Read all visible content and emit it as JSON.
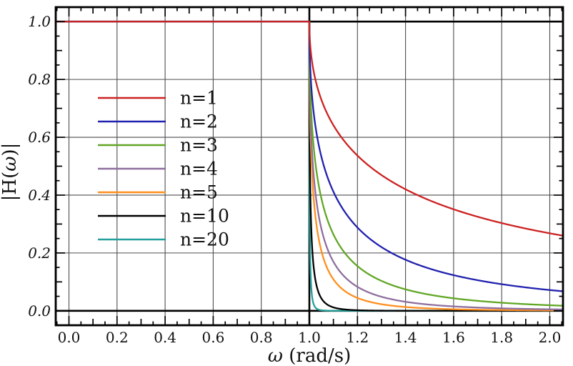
{
  "figure": {
    "background": "#ffffff",
    "text_color": "#111111"
  },
  "chart_data": {
    "type": "line",
    "title": "",
    "xlabel": "ω (rad/s)",
    "ylabel": "|H(ω)|",
    "xlim": [
      -0.055,
      2.055
    ],
    "ylim": [
      -0.05,
      1.05
    ],
    "grid": true,
    "grid_color": "#4d4d4d",
    "axis_color": "#000000",
    "x_major_ticks": [
      0.0,
      0.2,
      0.4,
      0.6,
      0.8,
      1.0,
      1.2,
      1.4,
      1.6,
      1.8,
      2.0
    ],
    "x_tick_labels": [
      "0.0",
      "0.2",
      "0.4",
      "0.6",
      "0.8",
      "1.0",
      "1.2",
      "1.4",
      "1.6",
      "1.8",
      "2.0"
    ],
    "y_major_ticks": [
      0.0,
      0.2,
      0.4,
      0.6,
      0.8,
      1.0
    ],
    "y_tick_labels": [
      "0.0",
      "0.2",
      "0.4",
      "0.6",
      "0.8",
      "1.0"
    ],
    "minor_tick_step": 0.05,
    "medium_tick_step": 0.1,
    "major_tick_step": 0.2,
    "reference_lines": [
      {
        "axis": "y",
        "value": 1.0
      },
      {
        "axis": "y",
        "value": 0.0
      },
      {
        "axis": "x",
        "value": 1.0
      }
    ],
    "function": "|H_n(w)| = 1 for w <= 1 ; (w + sqrt(w^2 - 1))^(-n) = exp(-n*acosh(w)) for w > 1",
    "cutoff": 1.0,
    "passband_level": 1.0,
    "series": [
      {
        "name": "n=1",
        "n": 1,
        "color": "#cc2222"
      },
      {
        "name": "n=2",
        "n": 2,
        "color": "#2121af"
      },
      {
        "name": "n=3",
        "n": 3,
        "color": "#61a624"
      },
      {
        "name": "n=4",
        "n": 4,
        "color": "#8e6f9e"
      },
      {
        "name": "n=5",
        "n": 5,
        "color": "#ff8f1f"
      },
      {
        "name": "n=10",
        "n": 10,
        "color": "#000000"
      },
      {
        "name": "n=20",
        "n": 20,
        "color": "#23a099"
      }
    ],
    "sample_x": [
      1.1,
      1.2,
      1.4,
      1.6,
      1.8,
      2.0
    ],
    "sample_points": [
      {
        "name": "n=1",
        "y": [
          0.6417,
          0.5367,
          0.4202,
          0.351,
          0.3033,
          0.2679
        ]
      },
      {
        "name": "n=2",
        "y": [
          0.4118,
          0.288,
          0.1766,
          0.1232,
          0.092,
          0.0718
        ]
      },
      {
        "name": "n=3",
        "y": [
          0.2642,
          0.1546,
          0.0742,
          0.0432,
          0.0279,
          0.0192
        ]
      },
      {
        "name": "n=4",
        "y": [
          0.1696,
          0.083,
          0.0312,
          0.0152,
          0.0085,
          0.0051
        ]
      },
      {
        "name": "n=5",
        "y": [
          0.1088,
          0.0445,
          0.0131,
          0.0053,
          0.0026,
          0.0014
        ]
      },
      {
        "name": "n=10",
        "y": [
          0.0118,
          0.002,
          0.0002,
          0.0,
          0.0,
          0.0
        ]
      },
      {
        "name": "n=20",
        "y": [
          0.0001,
          0.0,
          0.0,
          0.0,
          0.0,
          0.0
        ]
      }
    ],
    "legend": {
      "position": "upper-left-inside",
      "entries": [
        "n=1",
        "n=2",
        "n=3",
        "n=4",
        "n=5",
        "n=10",
        "n=20"
      ]
    }
  }
}
